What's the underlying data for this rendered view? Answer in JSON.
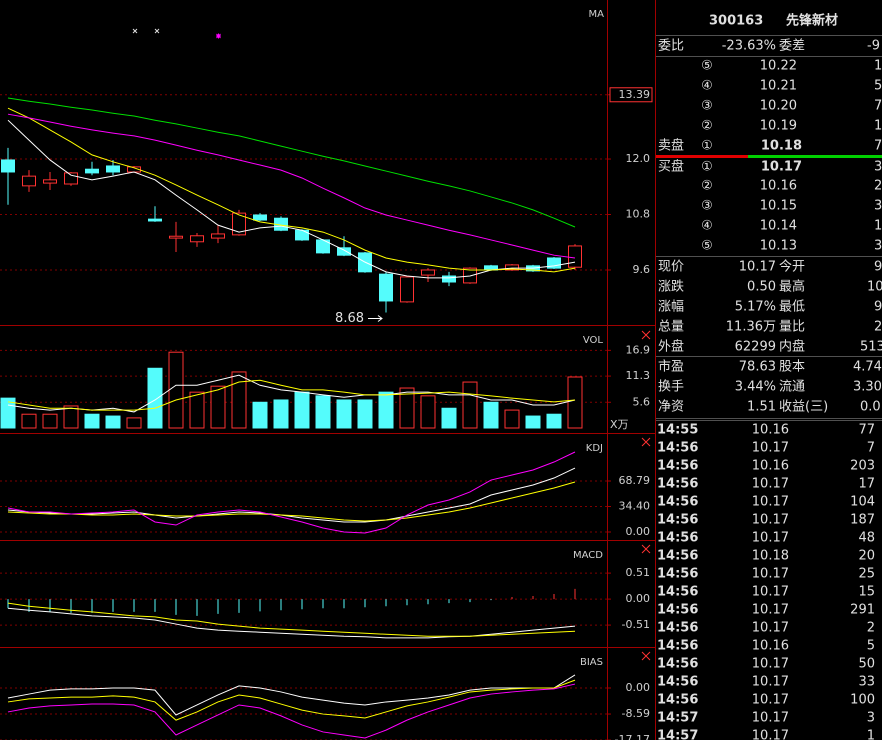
{
  "chart_data": [
    {
      "type": "candlestick",
      "title": "MA",
      "up_color": "#ff3232",
      "down_color": "#54fcfc",
      "ylim": [
        8.41,
        15.44
      ],
      "yticks": [
        13.39,
        {
          "value": 12,
          "label": "12.0"
        },
        10.8,
        9.6
      ],
      "open": [
        11.98,
        11.42,
        11.48,
        11.46,
        11.78,
        11.85,
        11.72,
        10.7,
        10.29,
        10.21,
        10.29,
        10.36,
        10.79,
        10.72,
        10.46,
        10.25,
        10.08,
        9.97,
        9.51,
        8.91,
        9.49,
        9.47,
        9.32,
        9.69,
        9.6,
        9.69,
        9.86,
        9.66
      ],
      "high": [
        12.24,
        11.76,
        11.72,
        11.72,
        11.94,
        11.98,
        11.85,
        10.98,
        10.64,
        10.4,
        10.57,
        10.9,
        10.83,
        10.76,
        10.48,
        10.27,
        10.33,
        9.99,
        9.56,
        9.47,
        9.64,
        9.56,
        9.66,
        9.71,
        9.73,
        9.71,
        9.88,
        10.16
      ],
      "low": [
        11.01,
        11.29,
        11.33,
        11.42,
        11.65,
        11.65,
        11.7,
        10.64,
        9.99,
        10.1,
        10.18,
        10.34,
        10.66,
        10.44,
        10.23,
        9.95,
        9.9,
        9.54,
        8.68,
        8.89,
        9.34,
        9.25,
        9.3,
        9.58,
        9.58,
        9.56,
        9.62,
        9.6
      ],
      "close": [
        11.72,
        11.63,
        11.55,
        11.7,
        11.7,
        11.72,
        11.83,
        10.66,
        10.33,
        10.34,
        10.38,
        10.83,
        10.68,
        10.46,
        10.25,
        9.97,
        9.92,
        9.56,
        8.93,
        9.45,
        9.6,
        9.34,
        9.64,
        9.6,
        9.71,
        9.58,
        9.64,
        10.12
      ],
      "low_label": 8.68,
      "lines": [
        {
          "color": "#ffffff",
          "values": [
            12.84,
            12.41,
            11.98,
            11.65,
            11.55,
            11.63,
            11.72,
            11.55,
            11.22,
            10.9,
            10.57,
            10.42,
            10.51,
            10.55,
            10.46,
            10.25,
            10.03,
            9.77,
            9.56,
            9.47,
            9.43,
            9.43,
            9.47,
            9.6,
            9.64,
            9.64,
            9.69,
            9.77
          ]
        },
        {
          "color": "#ffff00",
          "values": [
            13.1,
            12.89,
            12.63,
            12.37,
            12.09,
            11.94,
            11.81,
            11.65,
            11.44,
            11.22,
            11.01,
            10.79,
            10.64,
            10.57,
            10.51,
            10.42,
            10.25,
            10.03,
            9.86,
            9.77,
            9.71,
            9.64,
            9.6,
            9.6,
            9.62,
            9.6,
            9.56,
            9.64
          ]
        },
        {
          "color": "#ff00ff",
          "values": [
            12.97,
            12.89,
            12.8,
            12.71,
            12.63,
            12.56,
            12.5,
            12.41,
            12.3,
            12.19,
            12.09,
            11.98,
            11.87,
            11.76,
            11.59,
            11.37,
            11.16,
            10.94,
            10.79,
            10.68,
            10.57,
            10.46,
            10.36,
            10.25,
            10.14,
            10.03,
            9.92,
            9.86
          ]
        },
        {
          "color": "#00e000",
          "values": [
            13.32,
            13.25,
            13.19,
            13.12,
            13.06,
            12.99,
            12.93,
            12.84,
            12.76,
            12.67,
            12.58,
            12.5,
            12.39,
            12.28,
            12.17,
            12.06,
            11.96,
            11.85,
            11.74,
            11.63,
            11.52,
            11.42,
            11.31,
            11.18,
            11.05,
            10.9,
            10.72,
            10.53
          ]
        }
      ]
    },
    {
      "type": "volume",
      "title": "VOL",
      "unit": "X万",
      "ylim": [
        0,
        22.2
      ],
      "yticks": [
        16.9,
        11.3,
        5.6
      ],
      "values": [
        6.5,
        3.0,
        3.0,
        4.8,
        3.0,
        2.6,
        2.2,
        13.0,
        16.5,
        7.8,
        9.1,
        12.2,
        5.6,
        6.1,
        7.8,
        7.0,
        6.1,
        6.1,
        7.8,
        8.7,
        7.0,
        4.3,
        10.0,
        5.6,
        3.9,
        2.6,
        3.0,
        11.1
      ],
      "lines": [
        {
          "color": "#ffffff",
          "values": [
            5.0,
            4.3,
            3.9,
            4.3,
            3.9,
            4.3,
            3.5,
            6.1,
            9.3,
            9.3,
            10.4,
            11.5,
            9.3,
            8.3,
            7.8,
            7.2,
            6.7,
            7.2,
            7.2,
            7.8,
            7.8,
            7.2,
            7.2,
            6.1,
            6.1,
            5.0,
            5.0,
            6.1
          ]
        },
        {
          "color": "#ffff00",
          "values": [
            5.7,
            5.0,
            4.3,
            4.3,
            3.9,
            3.9,
            3.9,
            4.3,
            6.1,
            7.2,
            8.3,
            10.0,
            10.4,
            9.3,
            8.3,
            8.3,
            7.8,
            7.2,
            7.2,
            7.4,
            7.6,
            7.8,
            7.4,
            7.0,
            6.5,
            6.1,
            5.7,
            6.1
          ]
        }
      ]
    },
    {
      "type": "line",
      "title": "KDJ",
      "ylim": [
        -10.8,
        132.2
      ],
      "yticks": [
        68.79,
        {
          "value": 34.4,
          "label": "34.40"
        },
        {
          "value": 0,
          "label": "0.00"
        }
      ],
      "lines": [
        {
          "color": "#ffffff",
          "values": [
            29.7,
            27.0,
            25.6,
            24.3,
            24.3,
            25.6,
            27.0,
            22.9,
            18.9,
            21.6,
            24.3,
            27.0,
            25.6,
            22.9,
            18.9,
            16.2,
            13.5,
            13.5,
            16.2,
            21.6,
            27.0,
            32.4,
            37.8,
            49.9,
            56.7,
            63.4,
            72.8,
            86.3
          ]
        },
        {
          "color": "#ffff00",
          "values": [
            27.0,
            25.6,
            24.3,
            24.3,
            22.9,
            22.9,
            24.3,
            22.9,
            21.6,
            21.6,
            22.9,
            24.3,
            24.3,
            22.9,
            21.6,
            18.9,
            16.2,
            14.8,
            16.2,
            18.9,
            22.9,
            27.0,
            32.4,
            39.1,
            45.9,
            52.6,
            59.4,
            67.5
          ]
        },
        {
          "color": "#ff00ff",
          "values": [
            32.4,
            27.0,
            27.0,
            24.3,
            25.6,
            27.0,
            29.7,
            13.5,
            9.4,
            22.9,
            27.0,
            29.7,
            27.0,
            20.2,
            13.5,
            5.4,
            0.0,
            -1.3,
            5.4,
            22.9,
            36.4,
            43.2,
            54.0,
            70.1,
            76.9,
            83.6,
            94.4,
            107.9
          ]
        }
      ]
    },
    {
      "type": "macd",
      "title": "MACD",
      "up_color": "#ff3232",
      "down_color": "#54fcfc",
      "ylim": [
        -0.94,
        1.14
      ],
      "yticks": [
        0.51,
        {
          "value": 0,
          "label": "0.00"
        },
        -0.51
      ],
      "values": [
        -0.18,
        -0.25,
        -0.25,
        -0.27,
        -0.27,
        -0.25,
        -0.25,
        -0.25,
        -0.31,
        -0.33,
        -0.29,
        -0.27,
        -0.24,
        -0.22,
        -0.2,
        -0.18,
        -0.18,
        -0.16,
        -0.14,
        -0.12,
        -0.1,
        -0.08,
        -0.06,
        -0.02,
        0.04,
        0.06,
        0.1,
        0.2
      ],
      "lines": [
        {
          "color": "#ffffff",
          "values": [
            -0.18,
            -0.22,
            -0.25,
            -0.29,
            -0.33,
            -0.35,
            -0.37,
            -0.41,
            -0.49,
            -0.57,
            -0.61,
            -0.63,
            -0.65,
            -0.67,
            -0.69,
            -0.71,
            -0.73,
            -0.74,
            -0.76,
            -0.76,
            -0.76,
            -0.74,
            -0.73,
            -0.69,
            -0.65,
            -0.61,
            -0.57,
            -0.53
          ]
        },
        {
          "color": "#ffff00",
          "values": [
            -0.08,
            -0.14,
            -0.18,
            -0.22,
            -0.25,
            -0.29,
            -0.33,
            -0.35,
            -0.41,
            -0.43,
            -0.49,
            -0.53,
            -0.57,
            -0.59,
            -0.61,
            -0.63,
            -0.65,
            -0.67,
            -0.69,
            -0.71,
            -0.73,
            -0.73,
            -0.73,
            -0.71,
            -0.69,
            -0.67,
            -0.65,
            -0.63
          ]
        }
      ]
    },
    {
      "type": "line",
      "title": "BIAS",
      "ylim": [
        -17.16,
        13.2
      ],
      "yticks": [
        {
          "value": 0,
          "label": "0.00"
        },
        -8.59,
        -17.17
      ],
      "lines": [
        {
          "color": "#ffffff",
          "values": [
            -3.3,
            -2.0,
            -0.7,
            -0.3,
            -0.3,
            0,
            0,
            -0.7,
            -8.9,
            -5.6,
            -2.3,
            0.7,
            0,
            -1.3,
            -3.0,
            -4.0,
            -5.0,
            -5.6,
            -4.6,
            -4.0,
            -3.3,
            -2.3,
            -0.7,
            0,
            0,
            0,
            0,
            4.3
          ]
        },
        {
          "color": "#ffff00",
          "values": [
            -4.6,
            -3.6,
            -3.3,
            -3.0,
            -3.0,
            -2.6,
            -3.0,
            -4.6,
            -10.6,
            -7.9,
            -4.6,
            -2.3,
            -3.3,
            -5.3,
            -7.3,
            -8.6,
            -9.2,
            -9.9,
            -7.9,
            -5.9,
            -4.6,
            -3.0,
            -1.3,
            -0.7,
            -0.3,
            0,
            0,
            2.6
          ]
        },
        {
          "color": "#ff00ff",
          "values": [
            -7.9,
            -6.6,
            -5.9,
            -5.6,
            -5.3,
            -5.3,
            -5.6,
            -7.9,
            -15.5,
            -12.2,
            -8.9,
            -5.6,
            -6.6,
            -9.2,
            -12.2,
            -14.5,
            -15.5,
            -16.5,
            -13.9,
            -10.6,
            -7.9,
            -5.6,
            -3.3,
            -2.0,
            -1.3,
            -0.7,
            -0.3,
            1.3
          ]
        }
      ]
    }
  ],
  "quote": {
    "code": "300163",
    "name": "先锋新材",
    "ratio": {
      "label": "委比",
      "value": "-23.63%",
      "label2": "委差",
      "value2": "-9"
    },
    "ask_label": "卖盘",
    "bid_label": "买盘",
    "asks": [
      {
        "level": "⑤",
        "price": "10.22",
        "volume": "1"
      },
      {
        "level": "④",
        "price": "10.21",
        "volume": "5"
      },
      {
        "level": "③",
        "price": "10.20",
        "volume": "7"
      },
      {
        "level": "②",
        "price": "10.19",
        "volume": "1"
      },
      {
        "level": "①",
        "price": "10.18",
        "volume": "7"
      }
    ],
    "bids": [
      {
        "level": "①",
        "price": "10.17",
        "volume": "3"
      },
      {
        "level": "②",
        "price": "10.16",
        "volume": "2"
      },
      {
        "level": "③",
        "price": "10.15",
        "volume": "3"
      },
      {
        "level": "④",
        "price": "10.14",
        "volume": "1"
      },
      {
        "level": "⑤",
        "price": "10.13",
        "volume": "3"
      }
    ],
    "stats": [
      {
        "label": "现价",
        "value": "10.17",
        "color": "#ff3232",
        "label2": "今开",
        "value2": "9",
        "color2": "#ff3232"
      },
      {
        "label": "涨跌",
        "value": "0.50",
        "color": "#ff3232",
        "label2": "最高",
        "value2": "10",
        "color2": "#ff3232"
      },
      {
        "label": "涨幅",
        "value": "5.17%",
        "color": "#ff3232",
        "label2": "最低",
        "value2": "9",
        "color2": "#ff3232"
      },
      {
        "label": "总量",
        "value": "11.36万",
        "color": "#ffff00",
        "label2": "量比",
        "value2": "2",
        "color2": "#e0e0e0"
      },
      {
        "label": "外盘",
        "value": "62299",
        "color": "#ff3232",
        "label2": "内盘",
        "value2": "513",
        "color2": "#00e600"
      }
    ],
    "finance": [
      {
        "label": "市盈",
        "value": "78.63",
        "label2": "股本",
        "value2": "4.74"
      },
      {
        "label": "换手",
        "value": "3.44%",
        "label2": "流通",
        "value2": "3.30"
      },
      {
        "label": "净资",
        "value": "1.51",
        "label2": "收益(三)",
        "value2": "0.0"
      }
    ],
    "trades": [
      [
        "14:55",
        "10.16",
        "77"
      ],
      [
        "14:56",
        "10.17",
        "7"
      ],
      [
        "14:56",
        "10.16",
        "203"
      ],
      [
        "14:56",
        "10.17",
        "17"
      ],
      [
        "14:56",
        "10.17",
        "104"
      ],
      [
        "14:56",
        "10.17",
        "187"
      ],
      [
        "14:56",
        "10.17",
        "48"
      ],
      [
        "14:56",
        "10.18",
        "20"
      ],
      [
        "14:56",
        "10.17",
        "25"
      ],
      [
        "14:56",
        "10.17",
        "15"
      ],
      [
        "14:56",
        "10.17",
        "291"
      ],
      [
        "14:56",
        "10.17",
        "2"
      ],
      [
        "14:56",
        "10.16",
        "5"
      ],
      [
        "14:56",
        "10.17",
        "50"
      ],
      [
        "14:56",
        "10.17",
        "33"
      ],
      [
        "14:56",
        "10.17",
        "100"
      ],
      [
        "14:57",
        "10.17",
        "3"
      ],
      [
        "14:57",
        "10.17",
        "1"
      ]
    ]
  }
}
